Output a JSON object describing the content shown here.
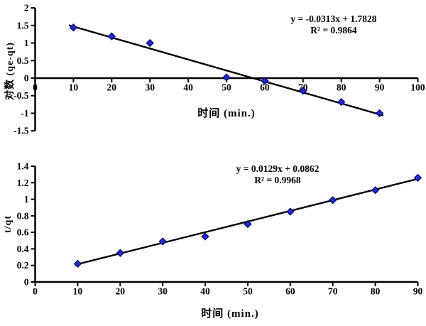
{
  "page": {
    "background": "#ffffff"
  },
  "chart_data": [
    {
      "type": "scatter",
      "title": "",
      "xlabel": "时间 (min.)",
      "ylabel": "对数 (qe-qt)",
      "annotation": {
        "equation": "y = -0.0313x + 1.7828",
        "r_squared": "R² = 0.9864"
      },
      "x": [
        10,
        20,
        30,
        50,
        60,
        70,
        80,
        90
      ],
      "y": [
        1.44,
        1.19,
        1.0,
        0.02,
        -0.08,
        -0.36,
        -0.68,
        -1.0
      ],
      "trendline": {
        "slope": -0.0313,
        "intercept": 1.7828
      },
      "xlim": [
        0,
        100
      ],
      "ylim": [
        -1.5,
        2
      ],
      "x_ticks": [
        0,
        10,
        20,
        30,
        40,
        50,
        60,
        70,
        80,
        90,
        100
      ],
      "y_ticks": [
        2,
        1.5,
        1,
        0.5,
        0,
        -0.5,
        -1,
        -1.5
      ],
      "grid": false,
      "legend": "none",
      "marker": "diamond",
      "colors": {
        "marker_fill": "#2828cd",
        "marker_edge": "#00007d",
        "axis": "#000000",
        "trend": "#000000",
        "text": "#000000"
      }
    },
    {
      "type": "scatter",
      "title": "",
      "xlabel": "时间 (min.)",
      "ylabel": "t/qt",
      "annotation": {
        "equation": "y = 0.0129x + 0.0862",
        "r_squared": "R² = 0.9968"
      },
      "x": [
        10,
        20,
        30,
        40,
        50,
        60,
        70,
        80,
        90
      ],
      "y": [
        0.22,
        0.35,
        0.49,
        0.55,
        0.7,
        0.85,
        0.99,
        1.11,
        1.26
      ],
      "trendline": {
        "slope": 0.0129,
        "intercept": 0.0862
      },
      "xlim": [
        0,
        90
      ],
      "ylim": [
        0,
        1.4
      ],
      "x_ticks": [
        0,
        10,
        20,
        30,
        40,
        50,
        60,
        70,
        80,
        90
      ],
      "y_ticks": [
        0,
        0.2,
        0.4,
        0.6,
        0.8,
        1,
        1.2,
        1.4
      ],
      "grid": false,
      "legend": "none",
      "marker": "diamond",
      "colors": {
        "marker_fill": "#2828cd",
        "marker_edge": "#00007d",
        "axis": "#000000",
        "trend": "#000000",
        "text": "#000000"
      }
    }
  ]
}
